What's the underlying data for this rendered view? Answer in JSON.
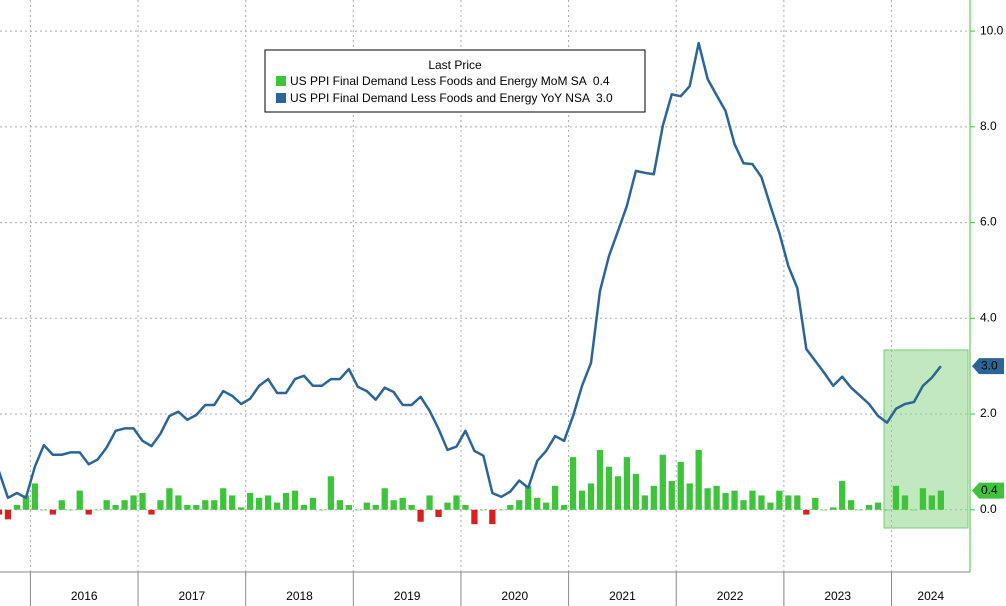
{
  "chart_data": {
    "type": "combo",
    "legend_title": "Last Price",
    "categories": [
      null,
      null,
      null,
      null,
      "2016",
      null,
      null,
      null,
      null,
      null,
      null,
      null,
      null,
      null,
      null,
      null,
      "2017",
      null,
      null,
      null,
      null,
      null,
      null,
      null,
      null,
      null,
      null,
      null,
      "2018",
      null,
      null,
      null,
      null,
      null,
      null,
      null,
      null,
      null,
      null,
      null,
      "2019",
      null,
      null,
      null,
      null,
      null,
      null,
      null,
      null,
      null,
      null,
      null,
      "2020",
      null,
      null,
      null,
      null,
      null,
      null,
      null,
      null,
      null,
      null,
      null,
      "2021",
      null,
      null,
      null,
      null,
      null,
      null,
      null,
      null,
      null,
      null,
      null,
      "2022",
      null,
      null,
      null,
      null,
      null,
      null,
      null,
      null,
      null,
      null,
      null,
      "2023",
      null,
      null,
      null,
      null,
      null,
      null,
      null,
      null,
      null,
      null,
      null,
      "2024",
      null,
      null,
      null,
      null,
      null
    ],
    "series": [
      {
        "name": "US PPI Final Demand Less Foods and Energy MoM SA",
        "type": "bar",
        "color": "#3ec43a",
        "negative_color": "#d9201f",
        "values": [
          -0.1,
          -0.2,
          0.1,
          0.3,
          0.55,
          0.0,
          -0.1,
          0.2,
          0.0,
          0.4,
          -0.1,
          0.0,
          0.2,
          0.1,
          0.2,
          0.3,
          0.35,
          -0.1,
          0.2,
          0.45,
          0.3,
          0.1,
          0.1,
          0.2,
          0.2,
          0.45,
          0.3,
          0.05,
          0.35,
          0.25,
          0.3,
          0.15,
          0.35,
          0.4,
          0.1,
          0.25,
          0.0,
          0.7,
          0.2,
          0.1,
          0.0,
          0.15,
          0.1,
          0.45,
          0.2,
          0.25,
          0.1,
          -0.25,
          0.3,
          -0.15,
          0.15,
          0.3,
          0.1,
          -0.3,
          0.0,
          -0.3,
          0.0,
          0.1,
          0.2,
          0.5,
          0.25,
          0.15,
          0.5,
          0.1,
          1.1,
          0.4,
          0.55,
          1.25,
          0.9,
          0.7,
          1.1,
          0.75,
          0.3,
          0.5,
          1.15,
          0.6,
          1.0,
          0.55,
          1.25,
          0.45,
          0.5,
          0.35,
          0.4,
          0.2,
          0.4,
          0.3,
          0.15,
          0.4,
          0.3,
          0.3,
          -0.1,
          0.25,
          0.0,
          0.05,
          0.6,
          0.2,
          0.0,
          0.1,
          0.15,
          0.0,
          0.5,
          0.3,
          0.0,
          0.45,
          0.3,
          0.4
        ],
        "value_labels": [
          null,
          null,
          null,
          null,
          null,
          null,
          null,
          null,
          null,
          null,
          null,
          null,
          null,
          null,
          null,
          null,
          null,
          null,
          null,
          null,
          null,
          null,
          null,
          null,
          null,
          null,
          null,
          null,
          null,
          null,
          null,
          null,
          null,
          null,
          null,
          null,
          null,
          null,
          null,
          null,
          null,
          null,
          null,
          null,
          null,
          null,
          null,
          null,
          null,
          null,
          null,
          null,
          null,
          null,
          null,
          null,
          null,
          null,
          null,
          null,
          null,
          null,
          null,
          null,
          null,
          null,
          null,
          null,
          null,
          null,
          null,
          null,
          null,
          null,
          null,
          null,
          null,
          null,
          null,
          null,
          null,
          null,
          null,
          null,
          null,
          null,
          null,
          null,
          null,
          null,
          null,
          null,
          null,
          null,
          null,
          null,
          null,
          null,
          null,
          null,
          null,
          null,
          null,
          null,
          null,
          "0.4"
        ]
      },
      {
        "name": "US PPI Final Demand Less Foods and Energy YoY NSA",
        "type": "line",
        "color": "#2b6597",
        "values": [
          0.8,
          0.25,
          0.35,
          0.25,
          0.9,
          1.35,
          1.15,
          1.15,
          1.2,
          1.2,
          0.95,
          1.05,
          1.3,
          1.65,
          1.7,
          1.7,
          1.44,
          1.33,
          1.59,
          1.96,
          2.05,
          1.88,
          1.98,
          2.19,
          2.19,
          2.48,
          2.38,
          2.21,
          2.32,
          2.59,
          2.73,
          2.44,
          2.44,
          2.73,
          2.8,
          2.59,
          2.59,
          2.73,
          2.73,
          2.94,
          2.57,
          2.48,
          2.3,
          2.55,
          2.46,
          2.19,
          2.19,
          2.36,
          2.07,
          1.69,
          1.25,
          1.32,
          1.65,
          1.23,
          1.13,
          0.35,
          0.27,
          0.38,
          0.61,
          0.46,
          1.02,
          1.23,
          1.54,
          1.44,
          1.96,
          2.59,
          3.07,
          4.57,
          5.3,
          5.82,
          6.35,
          7.08,
          7.04,
          7.01,
          8.02,
          8.68,
          8.64,
          8.85,
          9.75,
          9.0,
          8.66,
          8.33,
          7.64,
          7.24,
          7.22,
          6.95,
          6.35,
          5.78,
          5.09,
          4.63,
          3.36,
          3.11,
          2.86,
          2.59,
          2.78,
          2.55,
          2.38,
          2.21,
          1.96,
          1.82,
          2.11,
          2.21,
          2.25,
          2.59,
          2.76,
          3.0
        ],
        "value_labels": [
          null,
          null,
          null,
          null,
          null,
          null,
          null,
          null,
          null,
          null,
          null,
          null,
          null,
          null,
          null,
          null,
          null,
          null,
          null,
          null,
          null,
          null,
          null,
          null,
          null,
          null,
          null,
          null,
          null,
          null,
          null,
          null,
          null,
          null,
          null,
          null,
          null,
          null,
          null,
          null,
          null,
          null,
          null,
          null,
          null,
          null,
          null,
          null,
          null,
          null,
          null,
          null,
          null,
          null,
          null,
          null,
          null,
          null,
          null,
          null,
          null,
          null,
          null,
          null,
          null,
          null,
          null,
          null,
          null,
          null,
          null,
          null,
          null,
          null,
          null,
          null,
          null,
          null,
          null,
          null,
          null,
          null,
          null,
          null,
          null,
          null,
          null,
          null,
          null,
          null,
          null,
          null,
          null,
          null,
          null,
          null,
          null,
          null,
          null,
          null,
          null,
          null,
          null,
          null,
          null,
          "3.0"
        ]
      }
    ],
    "ylim": [
      -1.3,
      10.65
    ],
    "yticks": [
      {
        "value": 0,
        "label": "0.0"
      },
      {
        "value": 2,
        "label": "2.0"
      },
      {
        "value": 4,
        "label": "4.0"
      },
      {
        "value": 6,
        "label": "6.0"
      },
      {
        "value": 8,
        "label": "8.0"
      },
      {
        "value": 10,
        "label": "10.0"
      }
    ],
    "grid": true
  }
}
